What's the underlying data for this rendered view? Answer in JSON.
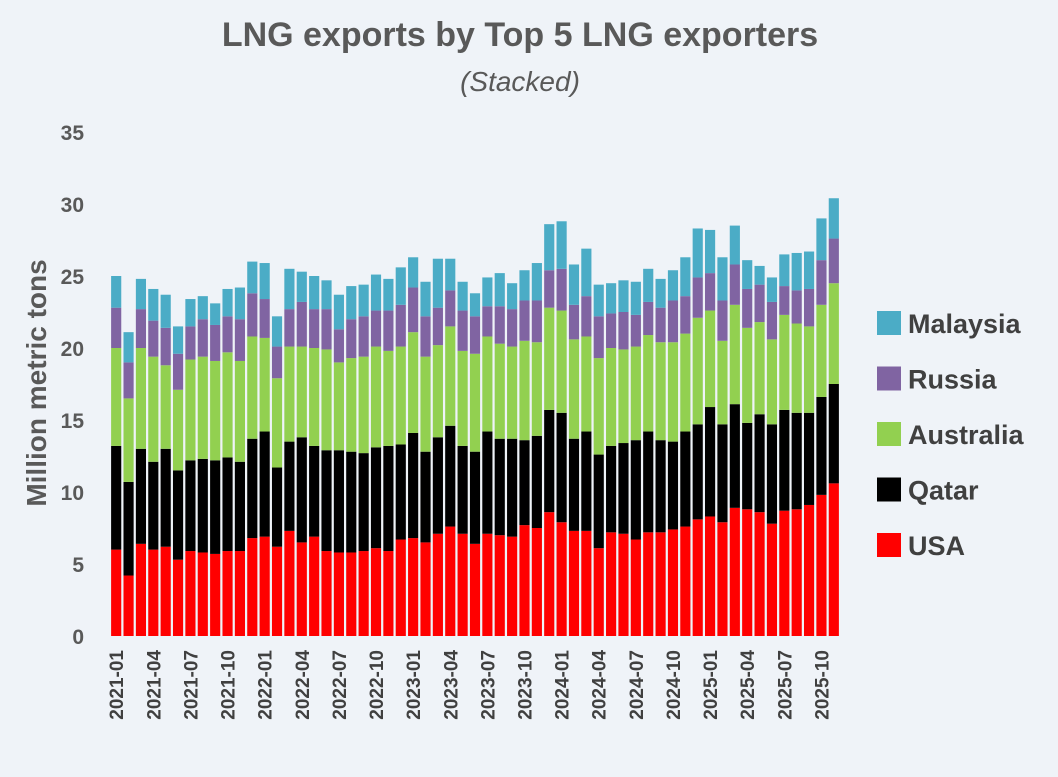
{
  "chart_data": {
    "type": "bar",
    "stacked": true,
    "title": "LNG exports by Top 5 LNG exporters",
    "subtitle": "(Stacked)",
    "xlabel": "",
    "ylabel": "Million metric tons",
    "ylim": [
      0,
      35
    ],
    "yticks": [
      0,
      5,
      10,
      15,
      20,
      25,
      30,
      35
    ],
    "grid": false,
    "legend_position": "right",
    "categories": [
      "2021-01",
      "2021-02",
      "2021-03",
      "2021-04",
      "2021-05",
      "2021-06",
      "2021-07",
      "2021-08",
      "2021-09",
      "2021-10",
      "2021-11",
      "2021-12",
      "2022-01",
      "2022-02",
      "2022-03",
      "2022-04",
      "2022-05",
      "2022-06",
      "2022-07",
      "2022-08",
      "2022-09",
      "2022-10",
      "2022-11",
      "2022-12",
      "2023-01",
      "2023-02",
      "2023-03",
      "2023-04",
      "2023-05",
      "2023-06",
      "2023-07",
      "2023-08",
      "2023-09",
      "2023-10",
      "2023-11",
      "2023-12",
      "2024-01",
      "2024-02",
      "2024-03",
      "2024-04",
      "2024-05",
      "2024-06",
      "2024-07",
      "2024-08",
      "2024-09",
      "2024-10",
      "2024-11",
      "2024-12",
      "2025-01",
      "2025-02",
      "2025-03",
      "2025-04",
      "2025-05",
      "2025-06",
      "2025-07",
      "2025-08",
      "2025-09",
      "2025-10",
      "2025-11"
    ],
    "tick_labels": [
      "2021-01",
      "2021-04",
      "2021-07",
      "2021-10",
      "2022-01",
      "2022-04",
      "2022-07",
      "2022-10",
      "2023-01",
      "2023-04",
      "2023-07",
      "2023-10",
      "2024-01",
      "2024-04",
      "2024-07",
      "2024-10",
      "2025-01",
      "2025-04",
      "2025-07",
      "2025-10"
    ],
    "tick_every": 3,
    "series": [
      {
        "name": "USA",
        "color": "#ff0000",
        "values": [
          6.0,
          4.2,
          6.4,
          6.0,
          6.2,
          5.3,
          5.9,
          5.8,
          5.7,
          5.9,
          5.9,
          6.8,
          6.9,
          6.2,
          7.3,
          6.5,
          6.9,
          5.9,
          5.8,
          5.8,
          5.9,
          6.1,
          5.9,
          6.7,
          6.8,
          6.5,
          7.1,
          7.6,
          7.1,
          6.4,
          7.1,
          7.0,
          6.9,
          7.7,
          7.5,
          8.6,
          7.9,
          7.3,
          7.3,
          6.1,
          7.2,
          7.1,
          6.7,
          7.2,
          7.2,
          7.4,
          7.6,
          8.1,
          8.3,
          7.9,
          8.9,
          8.8,
          8.6,
          7.8,
          8.7,
          8.8,
          9.1,
          9.8,
          10.6
        ]
      },
      {
        "name": "Qatar",
        "color": "#000000",
        "values": [
          7.2,
          6.5,
          6.6,
          6.1,
          6.8,
          6.2,
          6.3,
          6.5,
          6.5,
          6.5,
          6.2,
          6.9,
          7.3,
          5.5,
          6.2,
          7.3,
          6.3,
          7.0,
          7.1,
          7.0,
          6.8,
          7.0,
          7.3,
          6.6,
          7.3,
          6.3,
          6.7,
          7.0,
          6.1,
          6.4,
          7.1,
          6.7,
          6.8,
          5.9,
          6.4,
          7.1,
          7.6,
          6.4,
          6.9,
          6.5,
          6.0,
          6.3,
          6.9,
          7.0,
          6.4,
          6.1,
          6.6,
          6.6,
          7.6,
          6.8,
          7.2,
          6.0,
          6.8,
          6.9,
          7.0,
          6.7,
          6.4,
          6.8,
          6.9
        ]
      },
      {
        "name": "Australia",
        "color": "#92d050",
        "values": [
          6.8,
          5.8,
          7.0,
          7.3,
          5.8,
          5.6,
          7.0,
          7.1,
          6.9,
          7.3,
          7.0,
          7.1,
          6.5,
          6.2,
          6.6,
          6.3,
          6.8,
          7.0,
          6.1,
          6.5,
          6.7,
          7.0,
          6.6,
          6.8,
          7.0,
          6.6,
          6.4,
          6.9,
          6.6,
          6.8,
          6.6,
          6.6,
          6.4,
          6.9,
          6.5,
          7.1,
          7.1,
          6.9,
          6.6,
          6.7,
          6.8,
          6.5,
          6.5,
          6.7,
          6.8,
          6.9,
          6.8,
          7.4,
          6.7,
          5.8,
          6.9,
          6.6,
          6.4,
          5.9,
          6.6,
          6.2,
          6.0,
          6.4,
          7.0
        ]
      },
      {
        "name": "Russia",
        "color": "#8064a2",
        "values": [
          2.8,
          2.5,
          2.7,
          2.5,
          2.6,
          2.5,
          2.3,
          2.6,
          2.5,
          2.5,
          2.9,
          3.0,
          2.7,
          2.2,
          2.6,
          3.1,
          2.7,
          2.8,
          2.3,
          2.7,
          2.8,
          2.5,
          2.8,
          2.9,
          3.1,
          2.8,
          2.6,
          2.5,
          2.8,
          2.6,
          2.1,
          2.6,
          2.6,
          2.8,
          2.9,
          2.6,
          2.9,
          2.4,
          2.8,
          2.9,
          2.4,
          2.6,
          2.2,
          2.3,
          2.4,
          2.9,
          2.6,
          2.8,
          2.6,
          2.8,
          2.8,
          2.7,
          2.6,
          2.6,
          2.0,
          2.3,
          2.6,
          3.1,
          3.1
        ]
      },
      {
        "name": "Malaysia",
        "color": "#4bacc6",
        "values": [
          2.2,
          2.1,
          2.1,
          2.2,
          2.3,
          1.9,
          1.9,
          1.6,
          1.5,
          1.9,
          2.2,
          2.2,
          2.5,
          2.1,
          2.8,
          2.1,
          2.3,
          2.0,
          2.4,
          2.3,
          2.2,
          2.5,
          2.2,
          2.6,
          2.1,
          2.4,
          3.4,
          2.2,
          2.0,
          1.6,
          2.0,
          2.3,
          1.8,
          2.1,
          2.6,
          3.2,
          3.3,
          2.8,
          3.3,
          2.2,
          2.1,
          2.2,
          2.3,
          2.3,
          2.0,
          2.1,
          2.7,
          3.4,
          3.0,
          3.0,
          2.7,
          2.0,
          1.3,
          1.7,
          2.2,
          2.6,
          2.6,
          2.9,
          2.8
        ]
      }
    ],
    "legend_order": [
      "Malaysia",
      "Russia",
      "Australia",
      "Qatar",
      "USA"
    ]
  }
}
